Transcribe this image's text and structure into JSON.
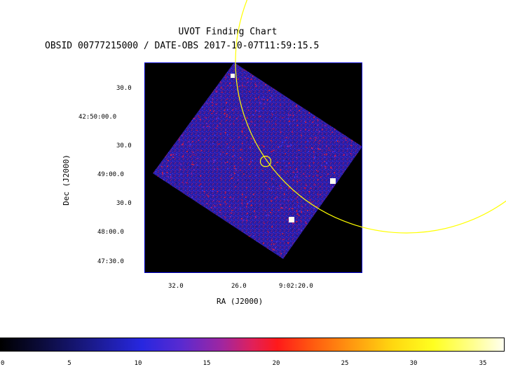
{
  "title": "UVOT Finding Chart",
  "subtitle": "OBSID 00777215000 / DATE-OBS 2017-10-07T11:59:15.5",
  "y_axis": {
    "label": "Dec (J2000)",
    "ticks": [
      "30.0",
      "42:50:00.0",
      "30.0",
      "49:00.0",
      "30.0",
      "48:00.0",
      "47:30.0"
    ]
  },
  "x_axis": {
    "label": "RA (J2000)",
    "ticks": [
      "32.0",
      "26.0",
      "9:02:20.0"
    ]
  },
  "colorbar": {
    "ticks": [
      "0",
      "5",
      "10",
      "15",
      "20",
      "25",
      "30",
      "35"
    ]
  },
  "colors": {
    "frame": "#0000cc",
    "overlay": "#ffff00",
    "background": "#000000"
  }
}
